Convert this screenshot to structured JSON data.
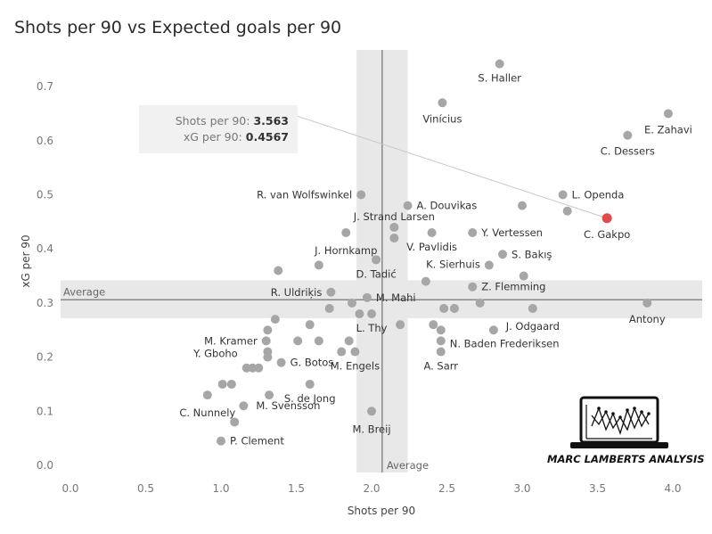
{
  "chart_data": {
    "type": "scatter",
    "title": "Shots per 90 vs Expected goals per 90",
    "xlabel": "Shots per 90",
    "ylabel": "xG per 90",
    "xlim": [
      -0.05,
      4.2
    ],
    "ylim": [
      -0.01,
      0.76
    ],
    "x_ticks": [
      "0.0",
      "0.5",
      "1.0",
      "1.5",
      "2.0",
      "2.5",
      "3.0",
      "3.5",
      "4.0"
    ],
    "y_ticks": [
      "0.0",
      "0.1",
      "0.2",
      "0.3",
      "0.4",
      "0.5",
      "0.6",
      "0.7"
    ],
    "grid": false,
    "average": {
      "label": "Average",
      "x": 2.07,
      "y": 0.306,
      "x_band": [
        1.9,
        2.24
      ],
      "y_band": [
        0.272,
        0.342
      ]
    },
    "point_color": "#a6a6a6",
    "highlight_color": "#e04a4a",
    "points": [
      {
        "x": 2.85,
        "y": 0.742,
        "label": "S. Haller"
      },
      {
        "x": 2.47,
        "y": 0.67,
        "label": "Vinícius"
      },
      {
        "x": 3.97,
        "y": 0.65,
        "label": "E. Zahavi"
      },
      {
        "x": 3.7,
        "y": 0.61,
        "label": "C. Dessers"
      },
      {
        "x": 1.93,
        "y": 0.5,
        "label": "R. van Wolfswinkel"
      },
      {
        "x": 2.24,
        "y": 0.48,
        "label": "A. Douvikas"
      },
      {
        "x": 3.27,
        "y": 0.5,
        "label": "L. Openda"
      },
      {
        "x": 3.0,
        "y": 0.48,
        "label": ""
      },
      {
        "x": 3.3,
        "y": 0.47,
        "label": ""
      },
      {
        "x": 3.563,
        "y": 0.4567,
        "label": "C. Gakpo",
        "highlight": true
      },
      {
        "x": 2.15,
        "y": 0.44,
        "label": "J. Strand Larsen"
      },
      {
        "x": 1.83,
        "y": 0.43,
        "label": "J. Hornkamp"
      },
      {
        "x": 2.15,
        "y": 0.42,
        "label": ""
      },
      {
        "x": 2.4,
        "y": 0.43,
        "label": "V. Pavlidis"
      },
      {
        "x": 2.67,
        "y": 0.43,
        "label": "Y. Vertessen"
      },
      {
        "x": 2.03,
        "y": 0.38,
        "label": "D. Tadić"
      },
      {
        "x": 1.65,
        "y": 0.37,
        "label": ""
      },
      {
        "x": 2.87,
        "y": 0.39,
        "label": "S. Bakış"
      },
      {
        "x": 2.78,
        "y": 0.37,
        "label": "K. Sierhuis"
      },
      {
        "x": 1.38,
        "y": 0.36,
        "label": ""
      },
      {
        "x": 3.01,
        "y": 0.35,
        "label": ""
      },
      {
        "x": 2.36,
        "y": 0.34,
        "label": ""
      },
      {
        "x": 2.67,
        "y": 0.33,
        "label": "Z. Flemming"
      },
      {
        "x": 1.73,
        "y": 0.32,
        "label": "R. Uldriķis"
      },
      {
        "x": 1.97,
        "y": 0.31,
        "label": "M. Mahi"
      },
      {
        "x": 1.87,
        "y": 0.3,
        "label": ""
      },
      {
        "x": 2.72,
        "y": 0.3,
        "label": ""
      },
      {
        "x": 1.72,
        "y": 0.29,
        "label": ""
      },
      {
        "x": 2.48,
        "y": 0.29,
        "label": ""
      },
      {
        "x": 2.55,
        "y": 0.29,
        "label": ""
      },
      {
        "x": 3.07,
        "y": 0.29,
        "label": "J. Odgaard"
      },
      {
        "x": 3.83,
        "y": 0.3,
        "label": "Antony"
      },
      {
        "x": 1.92,
        "y": 0.28,
        "label": ""
      },
      {
        "x": 2.0,
        "y": 0.28,
        "label": "L. Thy"
      },
      {
        "x": 1.36,
        "y": 0.27,
        "label": ""
      },
      {
        "x": 1.59,
        "y": 0.26,
        "label": ""
      },
      {
        "x": 2.19,
        "y": 0.26,
        "label": ""
      },
      {
        "x": 2.41,
        "y": 0.26,
        "label": ""
      },
      {
        "x": 1.31,
        "y": 0.25,
        "label": ""
      },
      {
        "x": 2.46,
        "y": 0.25,
        "label": ""
      },
      {
        "x": 2.81,
        "y": 0.25,
        "label": ""
      },
      {
        "x": 1.3,
        "y": 0.23,
        "label": "M. Kramer"
      },
      {
        "x": 1.51,
        "y": 0.23,
        "label": ""
      },
      {
        "x": 1.65,
        "y": 0.23,
        "label": ""
      },
      {
        "x": 1.85,
        "y": 0.23,
        "label": ""
      },
      {
        "x": 2.46,
        "y": 0.23,
        "label": "N. Baden Frederiksen"
      },
      {
        "x": 1.31,
        "y": 0.21,
        "label": ""
      },
      {
        "x": 1.8,
        "y": 0.21,
        "label": ""
      },
      {
        "x": 1.89,
        "y": 0.21,
        "label": "M. Engels"
      },
      {
        "x": 2.46,
        "y": 0.21,
        "label": "A. Sarr"
      },
      {
        "x": 1.31,
        "y": 0.2,
        "label": ""
      },
      {
        "x": 1.4,
        "y": 0.19,
        "label": "G. Botos"
      },
      {
        "x": 1.17,
        "y": 0.18,
        "label": "Y. Gboho"
      },
      {
        "x": 1.21,
        "y": 0.18,
        "label": ""
      },
      {
        "x": 1.25,
        "y": 0.18,
        "label": ""
      },
      {
        "x": 1.01,
        "y": 0.15,
        "label": ""
      },
      {
        "x": 1.07,
        "y": 0.15,
        "label": ""
      },
      {
        "x": 1.59,
        "y": 0.15,
        "label": "S. de Jong"
      },
      {
        "x": 0.91,
        "y": 0.13,
        "label": "C. Nunnely"
      },
      {
        "x": 1.32,
        "y": 0.13,
        "label": ""
      },
      {
        "x": 1.15,
        "y": 0.11,
        "label": "M. Svensson"
      },
      {
        "x": 2.0,
        "y": 0.1,
        "label": "M. Breij"
      },
      {
        "x": 1.09,
        "y": 0.08,
        "label": ""
      },
      {
        "x": 1.0,
        "y": 0.045,
        "label": "P. Clement"
      }
    ]
  },
  "tooltip": {
    "line1_label": "Shots per 90:",
    "line1_value": "3.563",
    "line2_label": "xG per 90:",
    "line2_value": "0.4567"
  },
  "brand": {
    "text": "MARC LAMBERTS ANALYSIS"
  }
}
